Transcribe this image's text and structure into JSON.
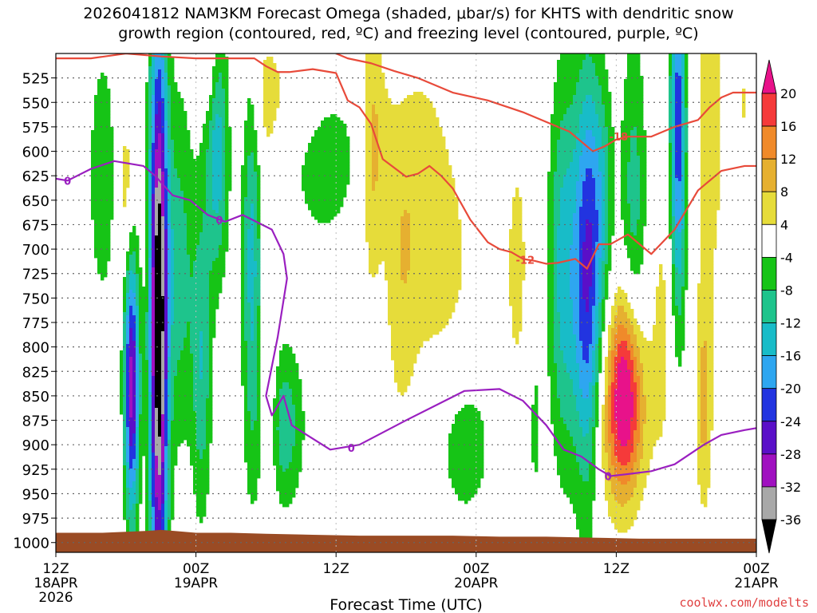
{
  "title_line1": "2026041812 NAM3KM Forecast Omega (shaded, μbar/s) for KHTS with dendritic snow",
  "title_line2": "growth region (contoured, red, ºC) and freezing level (contoured, purple, ºC)",
  "credit": "coolwx.com/modelts",
  "colors": {
    "dgz": "#e84a3a",
    "freezing": "#9a1fc0",
    "ground": "#9a4b24",
    "grid": "#666666"
  },
  "chart_data": {
    "type": "heatmap",
    "xlabel": "Forecast Time (UTC)",
    "ylabel": "",
    "x_ticks": [
      {
        "h": 0,
        "l1": "12Z",
        "l2": "18APR",
        "l3": "2026"
      },
      {
        "h": 12,
        "l1": "00Z",
        "l2": "19APR",
        "l3": ""
      },
      {
        "h": 24,
        "l1": "12Z",
        "l2": "",
        "l3": ""
      },
      {
        "h": 36,
        "l1": "00Z",
        "l2": "20APR",
        "l3": ""
      },
      {
        "h": 48,
        "l1": "12Z",
        "l2": "",
        "l3": ""
      },
      {
        "h": 60,
        "l1": "00Z",
        "l2": "21APR",
        "l3": ""
      }
    ],
    "xlim": [
      0,
      60
    ],
    "y_ticks": [
      525,
      550,
      575,
      600,
      625,
      650,
      675,
      700,
      725,
      750,
      775,
      800,
      825,
      850,
      875,
      900,
      925,
      950,
      975,
      1000
    ],
    "ylim": [
      500,
      1010
    ],
    "colorbar": {
      "labels": [
        "20",
        "16",
        "12",
        "8",
        "4",
        "-4",
        "-8",
        "-12",
        "-16",
        "-20",
        "-24",
        "-28",
        "-32",
        "-36"
      ],
      "bands": [
        {
          "lo": 20,
          "hi": 24,
          "color": "#e8128a"
        },
        {
          "lo": 16,
          "hi": 20,
          "color": "#f53a3a"
        },
        {
          "lo": 12,
          "hi": 16,
          "color": "#f08a2a"
        },
        {
          "lo": 8,
          "hi": 12,
          "color": "#e6b030"
        },
        {
          "lo": 4,
          "hi": 8,
          "color": "#e6dc3a"
        },
        {
          "lo": -4,
          "hi": 4,
          "color": "#ffffff"
        },
        {
          "lo": -8,
          "hi": -4,
          "color": "#16c416"
        },
        {
          "lo": -12,
          "hi": -8,
          "color": "#1ec48c"
        },
        {
          "lo": -16,
          "hi": -12,
          "color": "#18bcc8"
        },
        {
          "lo": -20,
          "hi": -16,
          "color": "#2ea6f0"
        },
        {
          "lo": -24,
          "hi": -20,
          "color": "#2234e0"
        },
        {
          "lo": -28,
          "hi": -24,
          "color": "#5a0fc8"
        },
        {
          "lo": -32,
          "hi": -28,
          "color": "#a010c0"
        },
        {
          "lo": -36,
          "hi": -32,
          "color": "#a8a8a8"
        },
        {
          "lo": -40,
          "hi": -36,
          "color": "#000000"
        }
      ]
    },
    "omega_features": [
      {
        "t": 4.0,
        "p": 625,
        "sx": 0.9,
        "sy": 100,
        "amp": -7
      },
      {
        "t": 6.0,
        "p": 640,
        "sx": 0.5,
        "sy": 60,
        "amp": 7
      },
      {
        "t": 6.5,
        "p": 840,
        "sx": 0.45,
        "sy": 95,
        "amp": -30
      },
      {
        "t": 8.8,
        "p": 780,
        "sx": 0.55,
        "sy": 220,
        "amp": -40
      },
      {
        "t": 10.5,
        "p": 720,
        "sx": 1.0,
        "sy": 130,
        "amp": -10
      },
      {
        "t": 12.5,
        "p": 820,
        "sx": 0.6,
        "sy": 110,
        "amp": -11
      },
      {
        "t": 13.8,
        "p": 600,
        "sx": 0.7,
        "sy": 90,
        "amp": -15
      },
      {
        "t": 13.2,
        "p": 520,
        "sx": 0.5,
        "sy": 40,
        "amp": 6
      },
      {
        "t": 16.8,
        "p": 700,
        "sx": 0.6,
        "sy": 160,
        "amp": -14
      },
      {
        "t": 17.5,
        "p": 560,
        "sx": 0.9,
        "sy": 70,
        "amp": 5
      },
      {
        "t": 18.3,
        "p": 840,
        "sx": 0.5,
        "sy": 100,
        "amp": 6
      },
      {
        "t": 19.5,
        "p": 880,
        "sx": 1.2,
        "sy": 60,
        "amp": -11
      },
      {
        "t": 20.5,
        "p": 540,
        "sx": 2.4,
        "sy": 40,
        "amp": 5
      },
      {
        "t": 23.0,
        "p": 600,
        "sx": 2.2,
        "sy": 70,
        "amp": -7
      },
      {
        "t": 27.0,
        "p": 600,
        "sx": 0.6,
        "sy": 110,
        "amp": 7
      },
      {
        "t": 27.8,
        "p": 590,
        "sx": 0.8,
        "sy": 70,
        "amp": 4
      },
      {
        "t": 29.5,
        "p": 720,
        "sx": 1.0,
        "sy": 120,
        "amp": 6
      },
      {
        "t": 31.5,
        "p": 650,
        "sx": 1.5,
        "sy": 120,
        "amp": 5
      },
      {
        "t": 34.0,
        "p": 720,
        "sx": 1.8,
        "sy": 110,
        "amp": 4
      },
      {
        "t": 35.0,
        "p": 900,
        "sx": 1.8,
        "sy": 60,
        "amp": -7
      },
      {
        "t": 39.5,
        "p": 720,
        "sx": 0.9,
        "sy": 120,
        "amp": 5
      },
      {
        "t": 41.0,
        "p": 880,
        "sx": 0.5,
        "sy": 80,
        "amp": -5
      },
      {
        "t": 43.5,
        "p": 720,
        "sx": 0.9,
        "sy": 140,
        "amp": -14
      },
      {
        "t": 45.5,
        "p": 730,
        "sx": 0.8,
        "sy": 150,
        "amp": -23
      },
      {
        "t": 46.8,
        "p": 650,
        "sx": 0.7,
        "sy": 90,
        "amp": -10
      },
      {
        "t": 48.8,
        "p": 840,
        "sx": 1.1,
        "sy": 70,
        "amp": 23
      },
      {
        "t": 48.2,
        "p": 900,
        "sx": 1.6,
        "sy": 60,
        "amp": 6
      },
      {
        "t": 49.5,
        "p": 660,
        "sx": 0.8,
        "sy": 130,
        "amp": -10
      },
      {
        "t": 52.0,
        "p": 780,
        "sx": 0.8,
        "sy": 120,
        "amp": 5
      },
      {
        "t": 53.3,
        "p": 580,
        "sx": 0.5,
        "sy": 140,
        "amp": -23
      },
      {
        "t": 55.5,
        "p": 860,
        "sx": 0.5,
        "sy": 80,
        "amp": 9
      },
      {
        "t": 56.0,
        "p": 580,
        "sx": 1.0,
        "sy": 140,
        "amp": 6
      },
      {
        "t": 59.0,
        "p": 550,
        "sx": 0.8,
        "sy": 80,
        "amp": 4
      }
    ],
    "freezing_level": {
      "label": "0",
      "t": [
        0,
        1.0,
        3.0,
        5.0,
        7.5,
        8.5,
        10.0,
        11.5,
        13.0,
        14.5,
        16.0,
        18.5,
        19.5,
        19.8,
        19.0,
        18.0,
        18.5,
        19.5,
        20.2,
        21.5,
        23.5,
        26.0,
        30.0,
        35.0,
        38.0,
        40.0,
        42.0,
        43.5,
        45.0,
        46.5,
        47.5,
        49.0,
        51.0,
        53.0,
        55.5,
        57.0,
        59.0,
        60.0
      ],
      "p": [
        628,
        630,
        618,
        610,
        615,
        625,
        645,
        650,
        665,
        672,
        665,
        680,
        705,
        730,
        790,
        850,
        870,
        850,
        880,
        890,
        905,
        900,
        875,
        845,
        843,
        855,
        880,
        905,
        912,
        925,
        932,
        930,
        927,
        920,
        900,
        890,
        885,
        883
      ]
    },
    "dgz_minus12": {
      "label": "-12",
      "t": [
        0,
        3,
        6,
        9,
        12,
        15,
        17,
        18,
        19,
        20,
        22,
        24,
        25,
        26,
        27,
        28,
        30,
        31,
        32,
        33,
        34,
        35.5,
        37,
        38,
        39,
        40,
        41,
        42,
        43,
        44.5,
        45.5,
        46.5,
        47.5,
        49,
        51,
        53,
        55,
        57,
        59,
        60
      ],
      "p": [
        505,
        505,
        500,
        503,
        505,
        505,
        505,
        513,
        519,
        519,
        516,
        520,
        548,
        555,
        572,
        608,
        626,
        623,
        615,
        625,
        638,
        670,
        693,
        700,
        703,
        710,
        712,
        715,
        714,
        710,
        720,
        695,
        695,
        685,
        705,
        680,
        640,
        620,
        615,
        615
      ]
    },
    "dgz_minus18": {
      "label": "-18",
      "t": [
        24,
        25,
        27,
        29,
        31,
        34,
        37,
        40,
        42,
        43,
        44,
        46,
        47,
        48,
        49,
        51,
        53,
        55,
        56,
        57,
        58,
        60
      ],
      "p": [
        500,
        505,
        510,
        518,
        525,
        540,
        548,
        560,
        570,
        575,
        580,
        600,
        595,
        588,
        585,
        585,
        575,
        568,
        555,
        545,
        540,
        540
      ]
    },
    "ground": {
      "t": [
        0,
        4,
        8,
        9,
        10,
        12,
        15,
        18,
        22,
        26,
        30,
        34,
        38,
        42,
        46,
        50,
        54,
        58,
        60
      ],
      "p": [
        990,
        990,
        988,
        987,
        988,
        990,
        990,
        991,
        992,
        993,
        993,
        993,
        994,
        994,
        995,
        996,
        996,
        996,
        996
      ]
    }
  }
}
